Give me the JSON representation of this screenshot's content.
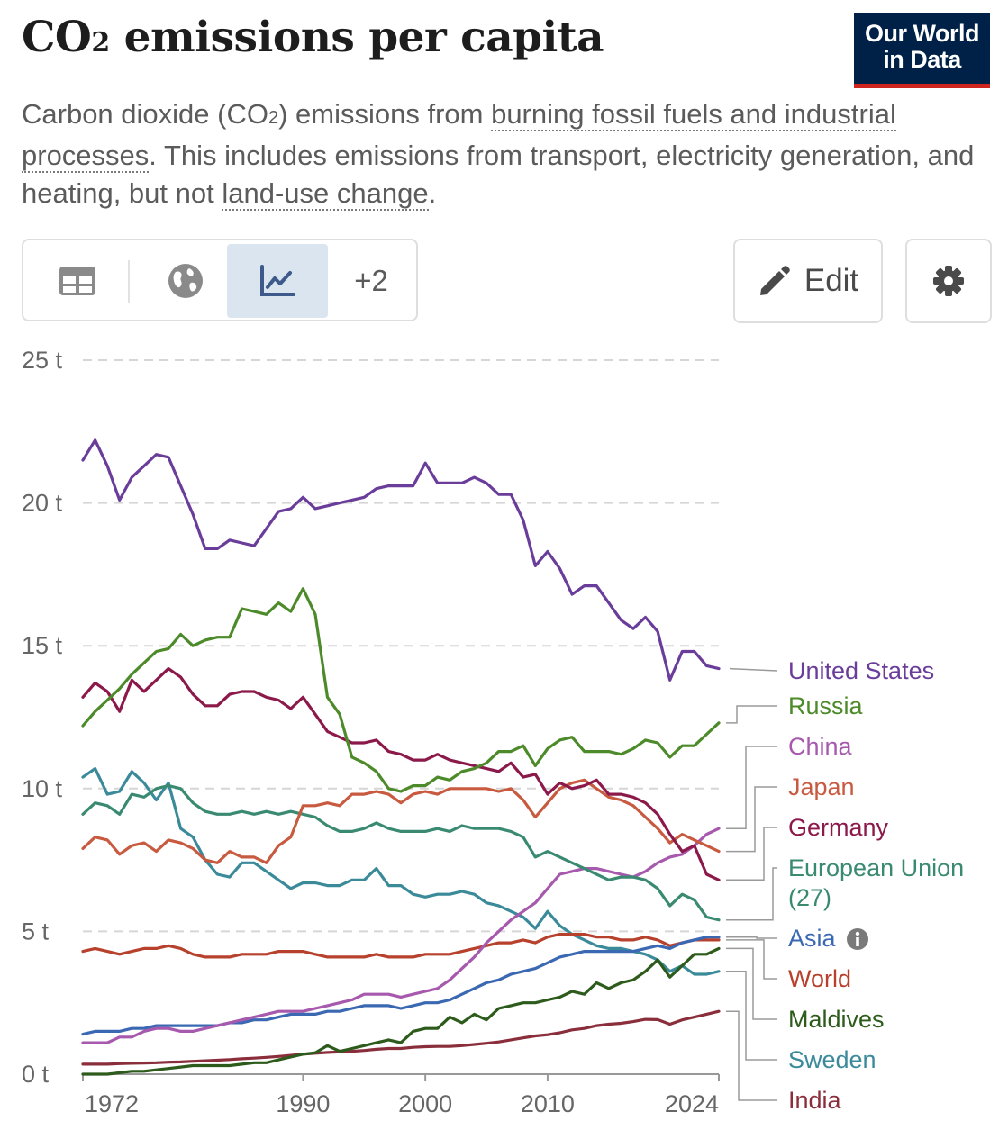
{
  "header": {
    "title_prefix": "CO",
    "title_subscript": "2",
    "title_suffix": " emissions per capita",
    "logo_line1": "Our World",
    "logo_line2": "in Data"
  },
  "subtitle": {
    "part1": "Carbon dioxide (CO",
    "sub": "2",
    "part2": ") emissions from ",
    "link1": "burning fossil fuels and industrial processes",
    "part3": ". This includes emissions from transport, electricity generation, and heating, but not ",
    "link2": "land-use change",
    "part4": "."
  },
  "toolbar": {
    "tab_table_icon": "table-icon",
    "tab_map_icon": "globe-icon",
    "tab_chart_icon": "line-chart-icon",
    "more_label": "+2",
    "edit_label": "Edit",
    "edit_icon": "pencil-icon",
    "settings_icon": "gear-icon"
  },
  "chart_data": {
    "type": "line",
    "title": "CO₂ emissions per capita",
    "ylabel": "",
    "xlabel": "",
    "y_unit": " t",
    "ylim": [
      0,
      25
    ],
    "yticks": [
      0,
      5,
      10,
      15,
      20,
      25
    ],
    "xlim": [
      1972,
      2024
    ],
    "xticks": [
      1972,
      1990,
      2000,
      2010,
      2024
    ],
    "grid": "horizontal dashed",
    "x": [
      1972,
      1973,
      1974,
      1975,
      1976,
      1977,
      1978,
      1979,
      1980,
      1981,
      1982,
      1983,
      1984,
      1985,
      1986,
      1987,
      1988,
      1989,
      1990,
      1991,
      1992,
      1993,
      1994,
      1995,
      1996,
      1997,
      1998,
      1999,
      2000,
      2001,
      2002,
      2003,
      2004,
      2005,
      2006,
      2007,
      2008,
      2009,
      2010,
      2011,
      2012,
      2013,
      2014,
      2015,
      2016,
      2017,
      2018,
      2019,
      2020,
      2021,
      2022,
      2023,
      2024
    ],
    "series": [
      {
        "name": "United States",
        "color": "#6a3d9a",
        "values": [
          21.5,
          22.2,
          21.3,
          20.1,
          20.9,
          21.3,
          21.7,
          21.6,
          20.6,
          19.6,
          18.4,
          18.4,
          18.7,
          18.6,
          18.5,
          19.1,
          19.7,
          19.8,
          20.2,
          19.8,
          19.9,
          20.0,
          20.1,
          20.2,
          20.5,
          20.6,
          20.6,
          20.6,
          21.4,
          20.7,
          20.7,
          20.7,
          20.9,
          20.7,
          20.3,
          20.3,
          19.4,
          17.8,
          18.3,
          17.7,
          16.8,
          17.1,
          17.1,
          16.5,
          15.9,
          15.6,
          16.0,
          15.5,
          13.8,
          14.8,
          14.8,
          14.3,
          14.2
        ]
      },
      {
        "name": "Russia",
        "color": "#4c8a2a",
        "values": [
          12.2,
          12.7,
          13.1,
          13.5,
          14.0,
          14.4,
          14.8,
          14.9,
          15.4,
          15.0,
          15.2,
          15.3,
          15.3,
          16.3,
          16.2,
          16.1,
          16.5,
          16.2,
          17.0,
          16.1,
          13.2,
          12.6,
          11.1,
          10.9,
          10.6,
          10.0,
          9.9,
          10.1,
          10.1,
          10.4,
          10.3,
          10.6,
          10.7,
          10.9,
          11.3,
          11.3,
          11.5,
          10.8,
          11.4,
          11.7,
          11.8,
          11.3,
          11.3,
          11.3,
          11.2,
          11.4,
          11.7,
          11.6,
          11.1,
          11.5,
          11.5,
          11.9,
          12.3
        ]
      },
      {
        "name": "China",
        "color": "#a659ad",
        "values": [
          1.1,
          1.1,
          1.1,
          1.3,
          1.3,
          1.5,
          1.6,
          1.6,
          1.5,
          1.5,
          1.6,
          1.7,
          1.8,
          1.9,
          2.0,
          2.1,
          2.2,
          2.2,
          2.2,
          2.3,
          2.4,
          2.5,
          2.6,
          2.8,
          2.8,
          2.8,
          2.7,
          2.8,
          2.9,
          3.0,
          3.3,
          3.7,
          4.1,
          4.6,
          5.0,
          5.4,
          5.7,
          6.0,
          6.5,
          7.0,
          7.1,
          7.2,
          7.2,
          7.1,
          7.0,
          6.9,
          7.1,
          7.4,
          7.6,
          7.7,
          8.0,
          8.4,
          8.6
        ]
      },
      {
        "name": "Japan",
        "color": "#c85a40",
        "values": [
          7.9,
          8.3,
          8.2,
          7.7,
          8.0,
          8.1,
          7.8,
          8.2,
          8.1,
          7.9,
          7.5,
          7.4,
          7.8,
          7.6,
          7.6,
          7.4,
          8.0,
          8.3,
          9.4,
          9.4,
          9.5,
          9.4,
          9.8,
          9.8,
          9.9,
          9.8,
          9.5,
          9.8,
          9.9,
          9.8,
          10.0,
          10.0,
          10.0,
          10.0,
          9.9,
          10.0,
          9.6,
          9.0,
          9.5,
          10.0,
          10.2,
          10.3,
          10.0,
          9.7,
          9.6,
          9.4,
          9.0,
          8.6,
          8.1,
          8.4,
          8.2,
          8.0,
          7.8
        ]
      },
      {
        "name": "Germany",
        "color": "#8b1a4b",
        "values": [
          13.2,
          13.7,
          13.4,
          12.7,
          13.8,
          13.4,
          13.8,
          14.2,
          13.9,
          13.3,
          12.9,
          12.9,
          13.3,
          13.4,
          13.4,
          13.2,
          13.1,
          12.8,
          13.2,
          12.6,
          12.0,
          11.8,
          11.6,
          11.6,
          11.7,
          11.3,
          11.2,
          11.0,
          11.0,
          11.2,
          11.0,
          10.9,
          10.8,
          10.7,
          10.6,
          10.9,
          10.4,
          10.5,
          9.8,
          10.2,
          10.0,
          10.1,
          10.3,
          9.8,
          9.8,
          9.7,
          9.5,
          9.1,
          8.4,
          7.8,
          8.0,
          7.0,
          6.8
        ]
      },
      {
        "name": "European Union (27)",
        "color": "#3a8a72",
        "values": [
          9.1,
          9.5,
          9.4,
          9.1,
          9.8,
          9.7,
          10.0,
          10.1,
          10.0,
          9.5,
          9.2,
          9.1,
          9.1,
          9.2,
          9.1,
          9.2,
          9.1,
          9.2,
          9.1,
          9.0,
          8.7,
          8.5,
          8.5,
          8.6,
          8.8,
          8.6,
          8.5,
          8.5,
          8.5,
          8.6,
          8.5,
          8.7,
          8.6,
          8.6,
          8.6,
          8.5,
          8.3,
          7.6,
          7.8,
          7.6,
          7.4,
          7.2,
          7.0,
          6.8,
          6.9,
          6.9,
          6.8,
          6.5,
          5.9,
          6.3,
          6.1,
          5.5,
          5.4
        ]
      },
      {
        "name": "Asia",
        "color": "#3b68b3",
        "values": [
          1.4,
          1.5,
          1.5,
          1.5,
          1.6,
          1.6,
          1.7,
          1.7,
          1.7,
          1.7,
          1.7,
          1.7,
          1.8,
          1.8,
          1.9,
          1.9,
          2.0,
          2.1,
          2.1,
          2.1,
          2.2,
          2.2,
          2.3,
          2.4,
          2.4,
          2.4,
          2.3,
          2.4,
          2.5,
          2.5,
          2.6,
          2.8,
          3.0,
          3.2,
          3.3,
          3.5,
          3.6,
          3.7,
          3.9,
          4.1,
          4.2,
          4.3,
          4.3,
          4.3,
          4.3,
          4.3,
          4.4,
          4.5,
          4.4,
          4.6,
          4.7,
          4.8,
          4.8
        ]
      },
      {
        "name": "World",
        "color": "#b7412c",
        "values": [
          4.3,
          4.4,
          4.3,
          4.2,
          4.3,
          4.4,
          4.4,
          4.5,
          4.4,
          4.2,
          4.1,
          4.1,
          4.1,
          4.2,
          4.2,
          4.2,
          4.3,
          4.3,
          4.3,
          4.2,
          4.1,
          4.1,
          4.1,
          4.1,
          4.2,
          4.1,
          4.1,
          4.1,
          4.2,
          4.2,
          4.2,
          4.3,
          4.4,
          4.5,
          4.6,
          4.6,
          4.7,
          4.6,
          4.8,
          4.9,
          4.9,
          4.9,
          4.8,
          4.8,
          4.7,
          4.7,
          4.8,
          4.7,
          4.5,
          4.6,
          4.7,
          4.7,
          4.7
        ]
      },
      {
        "name": "Maldives",
        "color": "#2d5b1c",
        "values": [
          0.0,
          0.0,
          0.0,
          0.05,
          0.1,
          0.1,
          0.15,
          0.2,
          0.25,
          0.3,
          0.3,
          0.3,
          0.3,
          0.35,
          0.4,
          0.4,
          0.5,
          0.6,
          0.7,
          0.75,
          1.0,
          0.8,
          0.9,
          1.0,
          1.1,
          1.2,
          1.1,
          1.5,
          1.6,
          1.6,
          2.0,
          1.8,
          2.1,
          1.9,
          2.3,
          2.4,
          2.5,
          2.5,
          2.6,
          2.7,
          2.9,
          2.8,
          3.2,
          3.0,
          3.2,
          3.3,
          3.6,
          4.0,
          3.4,
          3.8,
          4.2,
          4.2,
          4.4
        ]
      },
      {
        "name": "Sweden",
        "color": "#3a8a9a",
        "values": [
          10.4,
          10.7,
          9.8,
          9.9,
          10.6,
          10.2,
          9.6,
          10.2,
          8.6,
          8.3,
          7.5,
          7.0,
          6.9,
          7.4,
          7.4,
          7.1,
          6.8,
          6.5,
          6.7,
          6.7,
          6.6,
          6.6,
          6.8,
          6.8,
          7.2,
          6.6,
          6.6,
          6.3,
          6.2,
          6.3,
          6.3,
          6.4,
          6.3,
          6.0,
          5.9,
          5.7,
          5.5,
          5.1,
          5.7,
          5.2,
          4.9,
          4.7,
          4.5,
          4.4,
          4.4,
          4.3,
          4.2,
          4.0,
          3.6,
          3.8,
          3.5,
          3.5,
          3.6
        ]
      },
      {
        "name": "India",
        "color": "#8b2e3b",
        "values": [
          0.35,
          0.35,
          0.35,
          0.37,
          0.38,
          0.39,
          0.4,
          0.42,
          0.43,
          0.45,
          0.47,
          0.49,
          0.51,
          0.54,
          0.56,
          0.59,
          0.62,
          0.66,
          0.7,
          0.73,
          0.76,
          0.78,
          0.8,
          0.83,
          0.87,
          0.9,
          0.9,
          0.94,
          0.96,
          0.97,
          0.97,
          1.0,
          1.04,
          1.08,
          1.13,
          1.2,
          1.27,
          1.34,
          1.38,
          1.45,
          1.55,
          1.6,
          1.7,
          1.75,
          1.78,
          1.84,
          1.92,
          1.91,
          1.75,
          1.9,
          2.0,
          2.1,
          2.2
        ]
      }
    ],
    "legend_entries": [
      {
        "label": "United States",
        "color": "#6a3d9a"
      },
      {
        "label": "Russia",
        "color": "#4c8a2a"
      },
      {
        "label": "China",
        "color": "#a659ad"
      },
      {
        "label": "Japan",
        "color": "#c85a40"
      },
      {
        "label": "Germany",
        "color": "#8b1a4b"
      },
      {
        "label": "European Union",
        "label2": "(27)",
        "color": "#3a8a72"
      },
      {
        "label": "Asia",
        "color": "#3b68b3",
        "info_icon": "info-icon"
      },
      {
        "label": "World",
        "color": "#b7412c"
      },
      {
        "label": "Maldives",
        "color": "#2d5b1c"
      },
      {
        "label": "Sweden",
        "color": "#3a8a9a"
      },
      {
        "label": "India",
        "color": "#8b2e3b"
      }
    ],
    "legend_position": "right"
  }
}
